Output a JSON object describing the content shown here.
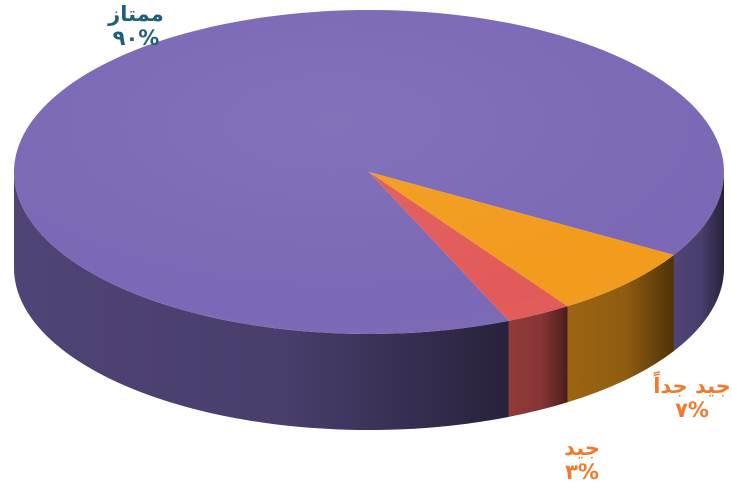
{
  "chart_data": {
    "type": "pie",
    "style": "3d",
    "categories": [
      "ممتاز",
      "جيد جداً",
      "جيد"
    ],
    "values": [
      90,
      7,
      3
    ],
    "value_labels": [
      "%٩٠",
      "%٧",
      "%٣"
    ],
    "colors": [
      "#7B68B6",
      "#F29B1C",
      "#E25A58"
    ],
    "label_colors": [
      "#1F5F7A",
      "#F07A2C",
      "#F07A2C"
    ],
    "title": "",
    "legend": "none"
  }
}
